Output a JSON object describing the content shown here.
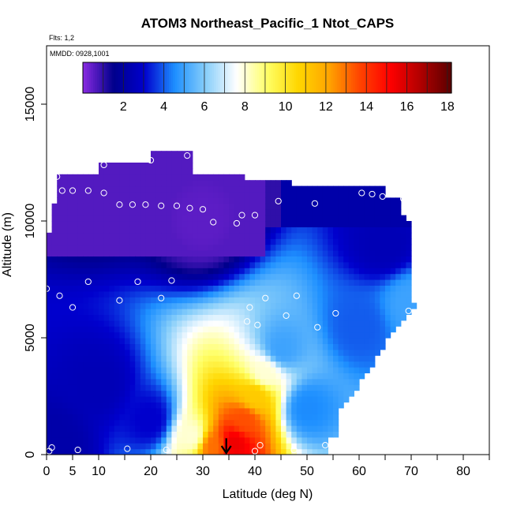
{
  "chart_data": {
    "type": "heatmap",
    "title": "ATOM3 Northeast_Pacific_1 Ntot_CAPS",
    "note_flights": "Flts: 1,2",
    "note_dates": "MMDD: 0928,1001",
    "xlabel": "Latitude (deg N)",
    "ylabel": "Altitude (m)",
    "xlim": [
      0,
      85
    ],
    "ylim": [
      0,
      17500
    ],
    "x_ticks": [
      0,
      5,
      10,
      20,
      30,
      40,
      50,
      60,
      70,
      80
    ],
    "x_minor_ticks": [
      15,
      25,
      35,
      45,
      55,
      65,
      75,
      85
    ],
    "y_ticks": [
      0,
      5000,
      10000,
      15000
    ],
    "colorbar": {
      "min": 0,
      "max": 18.2,
      "ticks": [
        2,
        4,
        6,
        8,
        10,
        12,
        14,
        16,
        18
      ],
      "colors": [
        "#8a2be2",
        "#00008b",
        "#0000cd",
        "#1e90ff",
        "#87cefa",
        "#ffffff",
        "#ffff66",
        "#ffd700",
        "#ffa500",
        "#ff4500",
        "#ff0000",
        "#b00000",
        "#5a0000"
      ]
    },
    "field": {
      "description_points": [
        {
          "lat": 2,
          "alt": 500,
          "v": 2.2
        },
        {
          "lat": 10,
          "alt": 3000,
          "v": 2.5
        },
        {
          "lat": 20,
          "alt": 1500,
          "v": 3.0
        },
        {
          "lat": 28,
          "alt": 800,
          "v": 8.0
        },
        {
          "lat": 32,
          "alt": 400,
          "v": 13.0
        },
        {
          "lat": 36,
          "alt": 500,
          "v": 15.5
        },
        {
          "lat": 38,
          "alt": 1500,
          "v": 13.5
        },
        {
          "lat": 40,
          "alt": 2500,
          "v": 11.0
        },
        {
          "lat": 42,
          "alt": 3500,
          "v": 8.0
        },
        {
          "lat": 45,
          "alt": 4500,
          "v": 5.0
        },
        {
          "lat": 50,
          "alt": 2000,
          "v": 4.5
        },
        {
          "lat": 60,
          "alt": 5500,
          "v": 4.0
        },
        {
          "lat": 70,
          "alt": 6500,
          "v": 5.0
        },
        {
          "lat": 65,
          "alt": 9000,
          "v": 2.5
        },
        {
          "lat": 30,
          "alt": 10000,
          "v": 0.5
        },
        {
          "lat": 10,
          "alt": 11500,
          "v": 1.0
        }
      ]
    },
    "sample_points": [
      {
        "lat": 0.5,
        "alt": 150
      },
      {
        "lat": 1,
        "alt": 300
      },
      {
        "lat": 6,
        "alt": 200
      },
      {
        "lat": 15.5,
        "alt": 250
      },
      {
        "lat": 23,
        "alt": 200
      },
      {
        "lat": 40,
        "alt": 150
      },
      {
        "lat": 41,
        "alt": 400
      },
      {
        "lat": 47.5,
        "alt": 200
      },
      {
        "lat": 53.5,
        "alt": 400
      },
      {
        "lat": 2,
        "alt": 11900
      },
      {
        "lat": 3,
        "alt": 11300
      },
      {
        "lat": 5,
        "alt": 11300
      },
      {
        "lat": 8,
        "alt": 11300
      },
      {
        "lat": 11,
        "alt": 11200
      },
      {
        "lat": 11,
        "alt": 12400
      },
      {
        "lat": 20,
        "alt": 12600
      },
      {
        "lat": 27,
        "alt": 12800
      },
      {
        "lat": 29.5,
        "alt": 12400
      },
      {
        "lat": 14,
        "alt": 10700
      },
      {
        "lat": 16.5,
        "alt": 10700
      },
      {
        "lat": 19,
        "alt": 10700
      },
      {
        "lat": 22,
        "alt": 10650
      },
      {
        "lat": 25,
        "alt": 10650
      },
      {
        "lat": 27.5,
        "alt": 10550
      },
      {
        "lat": 30,
        "alt": 10500
      },
      {
        "lat": 32,
        "alt": 9950
      },
      {
        "lat": 36.5,
        "alt": 9900
      },
      {
        "lat": 37.5,
        "alt": 10250
      },
      {
        "lat": 40,
        "alt": 10250
      },
      {
        "lat": 44.5,
        "alt": 10850
      },
      {
        "lat": 51.5,
        "alt": 10750
      },
      {
        "lat": 60.5,
        "alt": 11200
      },
      {
        "lat": 62.5,
        "alt": 11150
      },
      {
        "lat": 64.5,
        "alt": 11050
      },
      {
        "lat": 68.5,
        "alt": 10950
      },
      {
        "lat": 0,
        "alt": 7100
      },
      {
        "lat": 2.5,
        "alt": 6800
      },
      {
        "lat": 5,
        "alt": 6300
      },
      {
        "lat": 8,
        "alt": 7400
      },
      {
        "lat": 14,
        "alt": 6600
      },
      {
        "lat": 17.5,
        "alt": 7400
      },
      {
        "lat": 22,
        "alt": 6700
      },
      {
        "lat": 24,
        "alt": 7450
      },
      {
        "lat": 39,
        "alt": 6300
      },
      {
        "lat": 42,
        "alt": 6700
      },
      {
        "lat": 48,
        "alt": 6800
      },
      {
        "lat": 38.5,
        "alt": 5700
      },
      {
        "lat": 40.5,
        "alt": 5550
      },
      {
        "lat": 46,
        "alt": 5950
      },
      {
        "lat": 52,
        "alt": 5450
      },
      {
        "lat": 55.5,
        "alt": 6050
      },
      {
        "lat": 69.5,
        "alt": 6150
      }
    ],
    "arrow": {
      "lat": 34.5,
      "alt_top": 700
    }
  }
}
